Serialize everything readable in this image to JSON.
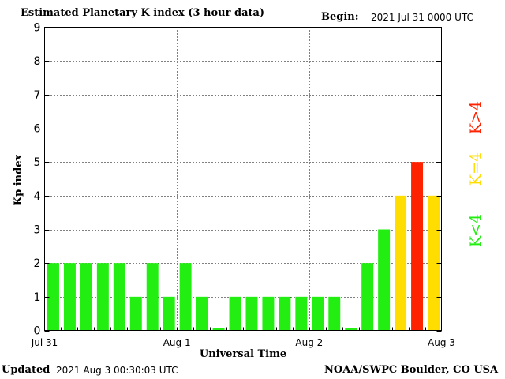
{
  "header": {
    "title": "Estimated Planetary K index (3 hour data)",
    "begin_label": "Begin:",
    "begin_value": "2021 Jul 31 0000 UTC"
  },
  "footer": {
    "updated_label": "Updated",
    "updated_value": "2021 Aug  3 00:30:03 UTC",
    "credit": "NOAA/SWPC Boulder, CO USA"
  },
  "legend": {
    "low": {
      "label": "K<4",
      "color": "#22ee11"
    },
    "mid": {
      "label": "K=4",
      "color": "#ffdd00"
    },
    "high": {
      "label": "K>4",
      "color": "#ff2200"
    }
  },
  "chart_data": {
    "type": "bar",
    "title": "Estimated Planetary K index (3 hour data)",
    "xlabel": "Universal Time",
    "ylabel": "Kp index",
    "ylim": [
      0,
      9
    ],
    "yticks": [
      0,
      1,
      2,
      3,
      4,
      5,
      6,
      7,
      8,
      9
    ],
    "grid": true,
    "x_tick_labels": [
      "Jul 31",
      "Aug 1",
      "Aug 2",
      "Aug 3"
    ],
    "interval_hours": 3,
    "values": [
      2,
      2,
      2,
      2,
      2,
      1,
      2,
      1,
      2,
      1,
      0,
      1,
      1,
      1,
      1,
      1,
      1,
      1,
      0,
      2,
      3,
      4,
      5,
      4
    ],
    "bar_colors": [
      "#22ee11",
      "#22ee11",
      "#22ee11",
      "#22ee11",
      "#22ee11",
      "#22ee11",
      "#22ee11",
      "#22ee11",
      "#22ee11",
      "#22ee11",
      "#22ee11",
      "#22ee11",
      "#22ee11",
      "#22ee11",
      "#22ee11",
      "#22ee11",
      "#22ee11",
      "#22ee11",
      "#22ee11",
      "#22ee11",
      "#22ee11",
      "#ffdd00",
      "#ff2200",
      "#ffdd00"
    ]
  }
}
